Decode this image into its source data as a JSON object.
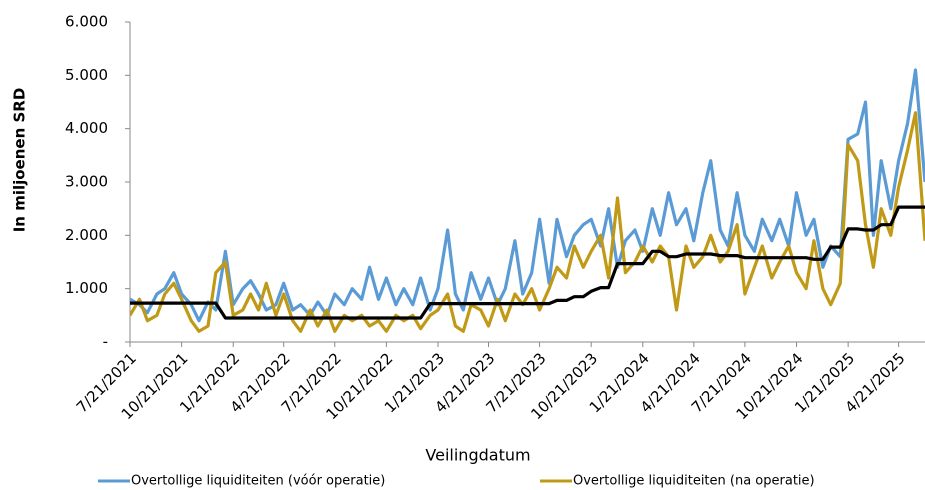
{
  "chart_data": {
    "type": "line",
    "y_label": "In miljoenen SRD",
    "x_label": "Veilingdatum",
    "x": [
      "7/21/2021",
      "8/7/2021",
      "8/21/2021",
      "9/7/2021",
      "9/21/2021",
      "10/7/2021",
      "10/21/2021",
      "11/7/2021",
      "11/21/2021",
      "12/7/2021",
      "12/21/2021",
      "1/7/2022",
      "1/21/2022",
      "2/7/2022",
      "2/21/2022",
      "3/7/2022",
      "3/21/2022",
      "4/7/2022",
      "4/21/2022",
      "5/7/2022",
      "5/21/2022",
      "6/7/2022",
      "6/21/2022",
      "7/7/2022",
      "7/21/2022",
      "8/7/2022",
      "8/21/2022",
      "9/7/2022",
      "9/21/2022",
      "10/7/2022",
      "10/21/2022",
      "11/7/2022",
      "11/21/2022",
      "12/7/2022",
      "12/21/2022",
      "1/7/2023",
      "1/21/2023",
      "2/7/2023",
      "2/21/2023",
      "3/7/2023",
      "3/21/2023",
      "4/7/2023",
      "4/21/2023",
      "5/7/2023",
      "5/21/2023",
      "6/7/2023",
      "6/21/2023",
      "7/7/2023",
      "7/21/2023",
      "8/7/2023",
      "8/21/2023",
      "9/7/2023",
      "9/21/2023",
      "10/7/2023",
      "10/21/2023",
      "11/7/2023",
      "11/21/2023",
      "12/7/2023",
      "12/21/2023",
      "1/7/2024",
      "1/21/2024",
      "2/7/2024",
      "2/21/2024",
      "3/7/2024",
      "3/21/2024",
      "4/7/2024",
      "4/21/2024",
      "5/7/2024",
      "5/21/2024",
      "6/7/2024",
      "6/21/2024",
      "7/7/2024",
      "7/21/2024",
      "8/7/2024",
      "8/21/2024",
      "9/7/2024",
      "9/21/2024",
      "10/7/2024",
      "10/21/2024",
      "11/7/2024",
      "11/21/2024",
      "12/7/2024",
      "12/21/2024",
      "1/7/2025",
      "1/21/2025",
      "2/7/2025",
      "2/21/2025",
      "3/7/2025",
      "3/21/2025",
      "4/7/2025",
      "4/21/2025",
      "5/7/2025",
      "5/21/2025",
      "6/7/2025"
    ],
    "series": [
      {
        "name": "Overtollige liquiditeiten (vóór operatie)",
        "color": "#5b9bd5",
        "values": [
          800,
          700,
          550,
          900,
          1000,
          1300,
          900,
          700,
          400,
          750,
          600,
          1700,
          700,
          1000,
          1150,
          900,
          600,
          700,
          1100,
          600,
          700,
          500,
          750,
          500,
          900,
          700,
          1000,
          800,
          1400,
          800,
          1200,
          700,
          1000,
          700,
          1200,
          600,
          1000,
          2100,
          900,
          600,
          1300,
          800,
          1200,
          700,
          1000,
          1900,
          900,
          1300,
          2300,
          1100,
          2300,
          1600,
          2000,
          2200,
          2300,
          1800,
          2500,
          1400,
          1900,
          2100,
          1700,
          2500,
          2000,
          2800,
          2200,
          2500,
          1900,
          2800,
          3400,
          2100,
          1800,
          2800,
          2000,
          1700,
          2300,
          1900,
          2300,
          1800,
          2800,
          2000,
          2300,
          1400,
          1800,
          1600,
          3800,
          3900,
          4500,
          2000,
          3400,
          2500,
          3400,
          4100,
          5100,
          3000
        ]
      },
      {
        "name": "Overtollige liquiditeiten (na operatie)",
        "color": "#c09a17",
        "values": [
          500,
          800,
          400,
          500,
          900,
          1100,
          800,
          400,
          200,
          300,
          1300,
          1500,
          500,
          600,
          900,
          600,
          1100,
          500,
          900,
          400,
          200,
          600,
          300,
          600,
          200,
          500,
          400,
          500,
          300,
          400,
          200,
          500,
          400,
          500,
          250,
          500,
          600,
          900,
          300,
          200,
          700,
          600,
          300,
          800,
          400,
          900,
          700,
          1000,
          600,
          1000,
          1400,
          1200,
          1800,
          1400,
          1700,
          2000,
          1200,
          2700,
          1300,
          1500,
          1800,
          1500,
          1800,
          1600,
          600,
          1800,
          1400,
          1600,
          2000,
          1500,
          1700,
          2200,
          900,
          1400,
          1800,
          1200,
          1500,
          1800,
          1300,
          1000,
          1900,
          1000,
          700,
          1100,
          3700,
          3400,
          2200,
          1400,
          2500,
          2000,
          2900,
          3600,
          4300,
          1900
        ]
      },
      {
        "color": "#000000",
        "values": [
          730,
          730,
          730,
          730,
          730,
          730,
          730,
          730,
          730,
          730,
          730,
          450,
          450,
          450,
          450,
          450,
          450,
          450,
          450,
          450,
          450,
          450,
          450,
          450,
          450,
          450,
          450,
          450,
          450,
          450,
          450,
          450,
          450,
          450,
          450,
          720,
          720,
          720,
          720,
          720,
          720,
          720,
          720,
          720,
          720,
          720,
          720,
          720,
          720,
          720,
          780,
          780,
          850,
          850,
          950,
          1020,
          1020,
          1470,
          1470,
          1470,
          1470,
          1700,
          1700,
          1600,
          1600,
          1650,
          1650,
          1650,
          1650,
          1620,
          1620,
          1620,
          1580,
          1580,
          1580,
          1580,
          1580,
          1580,
          1580,
          1580,
          1550,
          1550,
          1780,
          1780,
          2120,
          2120,
          2100,
          2100,
          2200,
          2200,
          2530,
          2530,
          2530,
          2530
        ]
      }
    ],
    "xlim": [
      "7/21/2021",
      "6/7/2025"
    ],
    "xticks": [
      "7/21/2021",
      "10/21/2021",
      "1/21/2022",
      "4/21/2022",
      "7/21/2022",
      "10/21/2022",
      "1/21/2023",
      "4/21/2023",
      "7/21/2023",
      "10/21/2023",
      "1/21/2024",
      "4/21/2024",
      "7/21/2024",
      "10/21/2024",
      "1/21/2025",
      "4/21/2025"
    ],
    "ylim": [
      0,
      6000
    ],
    "yticks": [
      {
        "value": 0,
        "label": "-"
      },
      {
        "value": 1000,
        "label": "1.000"
      },
      {
        "value": 2000,
        "label": "2.000"
      },
      {
        "value": 3000,
        "label": "3.000"
      },
      {
        "value": 4000,
        "label": "4.000"
      },
      {
        "value": 5000,
        "label": "5.000"
      },
      {
        "value": 6000,
        "label": "6.000"
      }
    ],
    "legend": "bottom",
    "grid": false
  }
}
